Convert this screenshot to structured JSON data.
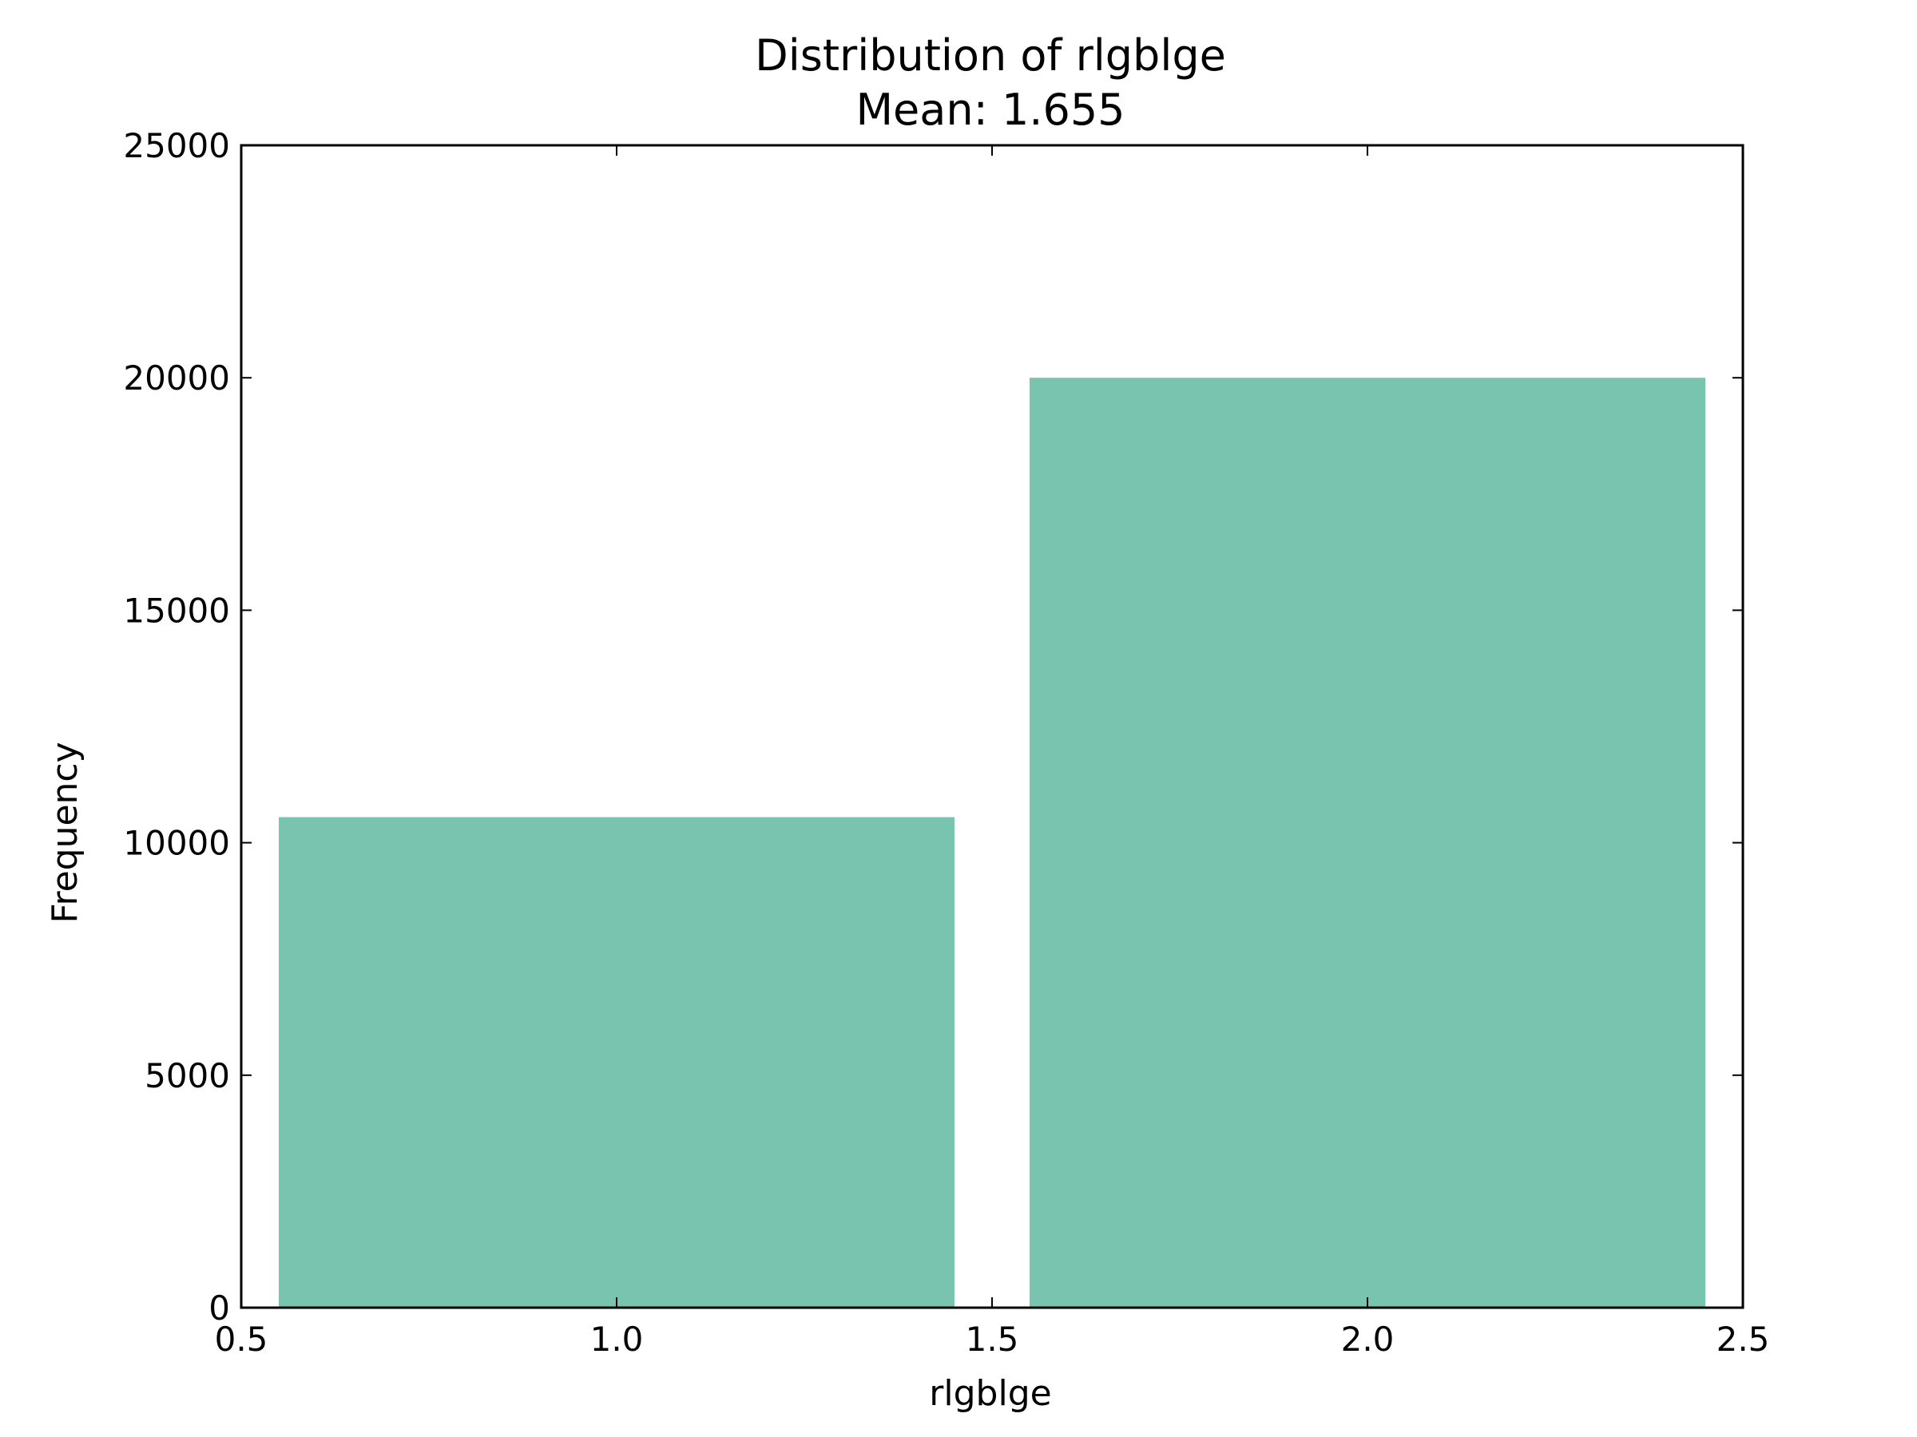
{
  "chart_data": {
    "type": "bar",
    "title": "Distribution of rlgblge",
    "subtitle": "Mean: 1.655",
    "xlabel": "rlgblge",
    "ylabel": "Frequency",
    "xlim": [
      0.5,
      2.5
    ],
    "ylim": [
      0,
      25000
    ],
    "xticks": [
      0.5,
      1.0,
      1.5,
      2.0,
      2.5
    ],
    "xtick_labels": [
      "0.5",
      "1.0",
      "1.5",
      "2.0",
      "2.5"
    ],
    "yticks": [
      0,
      5000,
      10000,
      15000,
      20000,
      25000
    ],
    "ytick_labels": [
      "0",
      "5000",
      "10000",
      "15000",
      "20000",
      "25000"
    ],
    "bars": [
      {
        "x_start": 0.55,
        "x_end": 1.45,
        "value": 10550
      },
      {
        "x_start": 1.55,
        "x_end": 2.45,
        "value": 20000
      }
    ],
    "bar_color": "#78c4ae",
    "grid": false,
    "legend": "none"
  }
}
